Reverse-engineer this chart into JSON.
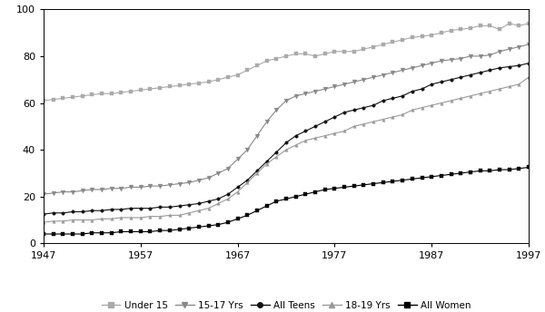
{
  "xlim": [
    1947,
    1997
  ],
  "ylim": [
    0,
    100
  ],
  "xticks": [
    1947,
    1957,
    1967,
    1977,
    1987,
    1997
  ],
  "yticks": [
    0,
    20,
    40,
    60,
    80,
    100
  ],
  "background_color": "#ffffff",
  "series": {
    "Under 15": {
      "color": "#aaaaaa",
      "marker": "s",
      "markersize": 2.5,
      "linewidth": 0.8,
      "years": [
        1947,
        1948,
        1949,
        1950,
        1951,
        1952,
        1953,
        1954,
        1955,
        1956,
        1957,
        1958,
        1959,
        1960,
        1961,
        1962,
        1963,
        1964,
        1965,
        1966,
        1967,
        1968,
        1969,
        1970,
        1971,
        1972,
        1973,
        1974,
        1975,
        1976,
        1977,
        1978,
        1979,
        1980,
        1981,
        1982,
        1983,
        1984,
        1985,
        1986,
        1987,
        1988,
        1989,
        1990,
        1991,
        1992,
        1993,
        1994,
        1995,
        1996,
        1997
      ],
      "values": [
        61,
        61.5,
        62,
        62.5,
        63,
        63.5,
        64,
        64,
        64.5,
        65,
        65.5,
        66,
        66.5,
        67,
        67.5,
        68,
        68.5,
        69,
        70,
        71,
        72,
        74,
        76,
        78,
        79,
        80,
        81,
        81,
        80,
        81,
        82,
        82,
        82,
        83,
        84,
        85,
        86,
        87,
        88,
        88.5,
        89,
        90,
        91,
        91.5,
        92,
        93,
        93,
        91.5,
        94,
        93,
        94
      ]
    },
    "15-17 Yrs": {
      "color": "#888888",
      "marker": "v",
      "markersize": 3.5,
      "linewidth": 0.8,
      "years": [
        1947,
        1948,
        1949,
        1950,
        1951,
        1952,
        1953,
        1954,
        1955,
        1956,
        1957,
        1958,
        1959,
        1960,
        1961,
        1962,
        1963,
        1964,
        1965,
        1966,
        1967,
        1968,
        1969,
        1970,
        1971,
        1972,
        1973,
        1974,
        1975,
        1976,
        1977,
        1978,
        1979,
        1980,
        1981,
        1982,
        1983,
        1984,
        1985,
        1986,
        1987,
        1988,
        1989,
        1990,
        1991,
        1992,
        1993,
        1994,
        1995,
        1996,
        1997
      ],
      "values": [
        21,
        21.5,
        22,
        22,
        22.5,
        23,
        23,
        23.5,
        23.5,
        24,
        24,
        24.5,
        24.5,
        25,
        25.5,
        26,
        27,
        28,
        30,
        32,
        36,
        40,
        46,
        52,
        57,
        61,
        63,
        64,
        65,
        66,
        67,
        68,
        69,
        70,
        71,
        72,
        73,
        74,
        75,
        76,
        77,
        78,
        78.5,
        79,
        80,
        80,
        80.5,
        82,
        83,
        84,
        85
      ]
    },
    "All Teens": {
      "color": "#111111",
      "marker": "o",
      "markersize": 2.5,
      "linewidth": 0.8,
      "years": [
        1947,
        1948,
        1949,
        1950,
        1951,
        1952,
        1953,
        1954,
        1955,
        1956,
        1957,
        1958,
        1959,
        1960,
        1961,
        1962,
        1963,
        1964,
        1965,
        1966,
        1967,
        1968,
        1969,
        1970,
        1971,
        1972,
        1973,
        1974,
        1975,
        1976,
        1977,
        1978,
        1979,
        1980,
        1981,
        1982,
        1983,
        1984,
        1985,
        1986,
        1987,
        1988,
        1989,
        1990,
        1991,
        1992,
        1993,
        1994,
        1995,
        1996,
        1997
      ],
      "values": [
        12.5,
        13,
        13,
        13.5,
        13.5,
        14,
        14,
        14.5,
        14.5,
        15,
        15,
        15,
        15.5,
        15.5,
        16,
        16.5,
        17,
        18,
        19,
        21,
        24,
        27,
        31,
        35,
        39,
        43,
        46,
        48,
        50,
        52,
        54,
        56,
        57,
        58,
        59,
        61,
        62,
        63,
        65,
        66,
        68,
        69,
        70,
        71,
        72,
        73,
        74,
        75,
        75.5,
        76,
        77
      ]
    },
    "18-19 Yrs": {
      "color": "#999999",
      "marker": "^",
      "markersize": 2.5,
      "linewidth": 0.8,
      "years": [
        1947,
        1948,
        1949,
        1950,
        1951,
        1952,
        1953,
        1954,
        1955,
        1956,
        1957,
        1958,
        1959,
        1960,
        1961,
        1962,
        1963,
        1964,
        1965,
        1966,
        1967,
        1968,
        1969,
        1970,
        1971,
        1972,
        1973,
        1974,
        1975,
        1976,
        1977,
        1978,
        1979,
        1980,
        1981,
        1982,
        1983,
        1984,
        1985,
        1986,
        1987,
        1988,
        1989,
        1990,
        1991,
        1992,
        1993,
        1994,
        1995,
        1996,
        1997
      ],
      "values": [
        9,
        9.5,
        9.5,
        10,
        10,
        10,
        10.5,
        10.5,
        11,
        11,
        11,
        11.5,
        11.5,
        12,
        12,
        13,
        14,
        15,
        17,
        19,
        22,
        26,
        30,
        34,
        37,
        40,
        42,
        44,
        45,
        46,
        47,
        48,
        50,
        51,
        52,
        53,
        54,
        55,
        57,
        58,
        59,
        60,
        61,
        62,
        63,
        64,
        65,
        66,
        67,
        68,
        71
      ]
    },
    "All Women": {
      "color": "#000000",
      "marker": "s",
      "markersize": 2.5,
      "linewidth": 0.8,
      "years": [
        1947,
        1948,
        1949,
        1950,
        1951,
        1952,
        1953,
        1954,
        1955,
        1956,
        1957,
        1958,
        1959,
        1960,
        1961,
        1962,
        1963,
        1964,
        1965,
        1966,
        1967,
        1968,
        1969,
        1970,
        1971,
        1972,
        1973,
        1974,
        1975,
        1976,
        1977,
        1978,
        1979,
        1980,
        1981,
        1982,
        1983,
        1984,
        1985,
        1986,
        1987,
        1988,
        1989,
        1990,
        1991,
        1992,
        1993,
        1994,
        1995,
        1996,
        1997
      ],
      "values": [
        4,
        4,
        4,
        4,
        4,
        4.5,
        4.5,
        4.5,
        5,
        5,
        5,
        5,
        5.5,
        5.5,
        6,
        6.5,
        7,
        7.5,
        8,
        9,
        10.5,
        12,
        14,
        16,
        18,
        19,
        20,
        21,
        22,
        23,
        23.5,
        24,
        24.5,
        25,
        25.5,
        26,
        26.5,
        27,
        27.5,
        28,
        28.5,
        29,
        29.5,
        30,
        30.5,
        31,
        31,
        31.5,
        31.5,
        32,
        32.5
      ]
    }
  },
  "legend_entries": [
    "Under 15",
    "15-17 Yrs",
    "All Teens",
    "18-19 Yrs",
    "All Women"
  ],
  "legend_colors": [
    "#aaaaaa",
    "#888888",
    "#111111",
    "#999999",
    "#000000"
  ],
  "legend_markers": [
    "s",
    "v",
    "o",
    "^",
    "s"
  ]
}
